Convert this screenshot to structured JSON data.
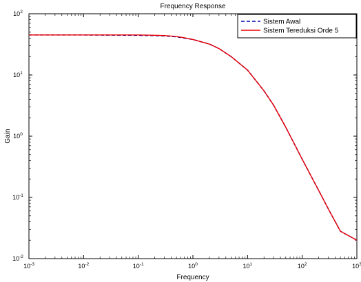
{
  "chart_data": {
    "type": "line",
    "title": "Frequency Response",
    "xlabel": "Frequency",
    "ylabel": "Gain",
    "xscale": "log",
    "yscale": "log",
    "xlim": [
      0.001,
      1000
    ],
    "ylim": [
      0.01,
      100
    ],
    "x_ticks": [
      {
        "value": 0.001,
        "base": "10",
        "exp": "-3"
      },
      {
        "value": 0.01,
        "base": "10",
        "exp": "-2"
      },
      {
        "value": 0.1,
        "base": "10",
        "exp": "-1"
      },
      {
        "value": 1,
        "base": "10",
        "exp": "0"
      },
      {
        "value": 10,
        "base": "10",
        "exp": "1"
      },
      {
        "value": 100,
        "base": "10",
        "exp": "2"
      },
      {
        "value": 1000,
        "base": "10",
        "exp": "3"
      }
    ],
    "y_ticks": [
      {
        "value": 0.01,
        "base": "10",
        "exp": "-2"
      },
      {
        "value": 0.1,
        "base": "10",
        "exp": "-1"
      },
      {
        "value": 1,
        "base": "10",
        "exp": "0"
      },
      {
        "value": 10,
        "base": "10",
        "exp": "1"
      },
      {
        "value": 100,
        "base": "10",
        "exp": "2"
      }
    ],
    "grid": false,
    "legend_position": "top-right",
    "series": [
      {
        "name": "Sistem Awal",
        "color": "#0000aa",
        "style": "dashed",
        "x": [
          0.001,
          0.01,
          0.1,
          0.2,
          0.3,
          0.5,
          0.7,
          1,
          2,
          3,
          5,
          10,
          20,
          30,
          50,
          100,
          200,
          300,
          500,
          1000
        ],
        "y": [
          45,
          45,
          44.5,
          44,
          43.5,
          42,
          40,
          38,
          32,
          27,
          20,
          12,
          5.5,
          3.2,
          1.4,
          0.42,
          0.13,
          0.065,
          0.028,
          0.02
        ]
      },
      {
        "name": "Sistem Tereduksi Orde 5",
        "color": "#ee0000",
        "style": "solid",
        "x": [
          0.001,
          0.01,
          0.1,
          0.2,
          0.3,
          0.5,
          0.7,
          1,
          2,
          3,
          5,
          10,
          20,
          30,
          50,
          100,
          200,
          300,
          500,
          1000
        ],
        "y": [
          45,
          45,
          45,
          44.5,
          44,
          42.5,
          40.5,
          38,
          32,
          27,
          20,
          12,
          5.5,
          3.2,
          1.4,
          0.42,
          0.13,
          0.065,
          0.028,
          0.02
        ]
      }
    ]
  }
}
